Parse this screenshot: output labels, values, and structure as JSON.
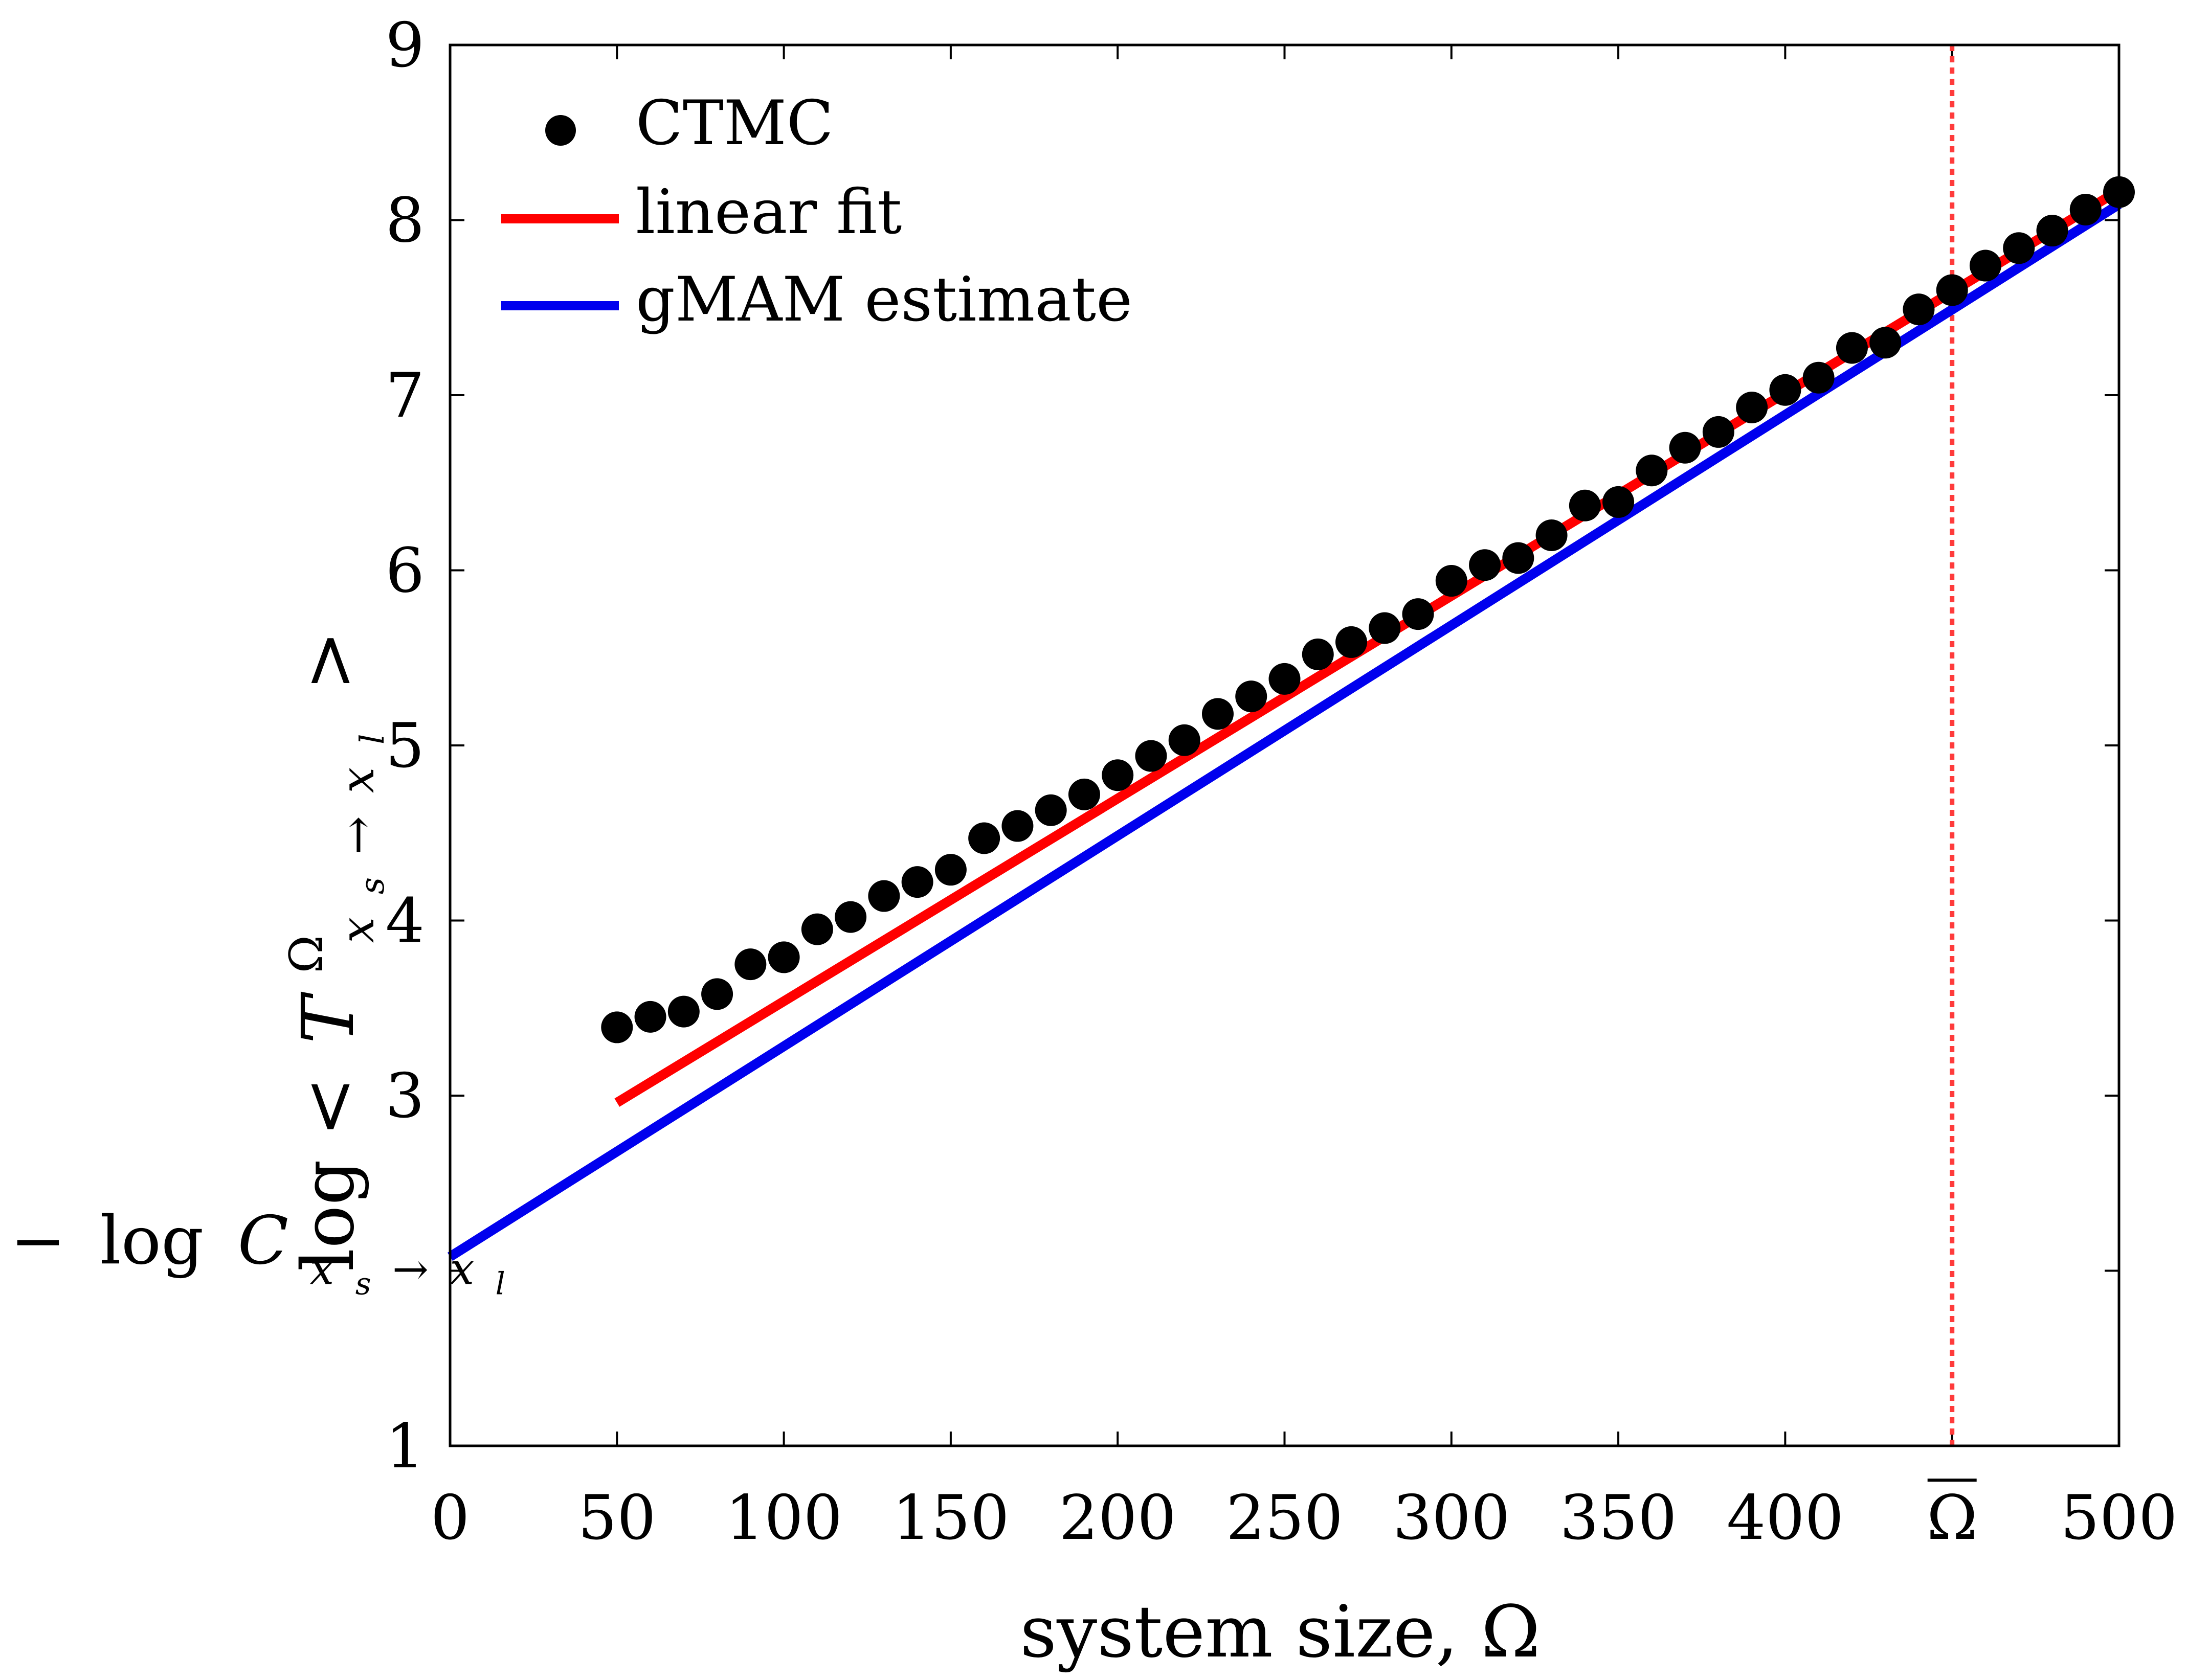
{
  "chart_data": {
    "type": "scatter",
    "xlabel": "system size, Ω",
    "ylabel": {
      "prefix": "log <",
      "symbol": "T",
      "superscript": "Ω",
      "subscript": "x",
      "subscript_index_s": "s",
      "arrow": "→",
      "subscript_target": "x",
      "subscript_index_l": "l",
      "suffix": ">"
    },
    "xlim": [
      0,
      500
    ],
    "ylim": [
      1,
      9
    ],
    "x_ticks": [
      0,
      50,
      100,
      150,
      200,
      250,
      300,
      350,
      400,
      450,
      500
    ],
    "x_tick_labels": [
      "0",
      "50",
      "100",
      "150",
      "200",
      "250",
      "300",
      "350",
      "400",
      "Ω",
      "500"
    ],
    "y_ticks": [
      1,
      2,
      3,
      4,
      5,
      6,
      7,
      8,
      9
    ],
    "y_tick_labels": [
      "1",
      "",
      "3",
      "4",
      "5",
      "6",
      "7",
      "8",
      "9"
    ],
    "intercept_label": {
      "value": 2.1,
      "minus": "−",
      "log": "log",
      "symbol": "C",
      "subscript": "x",
      "subscript_index_s": "s",
      "arrow": "→",
      "subscript_target": "x",
      "subscript_index_l": "l"
    },
    "vertical_line": {
      "x": 450,
      "style": "dotted",
      "color": "#ff3b3b"
    },
    "legend": [
      {
        "label": "CTMC",
        "marker": "dot",
        "color": "#000000"
      },
      {
        "label": "linear fit",
        "marker": "line",
        "color": "#ff0000"
      },
      {
        "label": "gMAM estimate",
        "marker": "line",
        "color": "#0000ee"
      }
    ],
    "series": [
      {
        "name": "CTMC",
        "kind": "scatter",
        "color": "#000000",
        "x": [
          50,
          60,
          70,
          80,
          90,
          100,
          110,
          120,
          130,
          140,
          150,
          160,
          170,
          180,
          190,
          200,
          210,
          220,
          230,
          240,
          250,
          260,
          270,
          280,
          290,
          300,
          310,
          320,
          330,
          340,
          350,
          360,
          370,
          380,
          390,
          400,
          410,
          420,
          430,
          440,
          450,
          460,
          470,
          480,
          490,
          500
        ],
        "y": [
          3.39,
          3.45,
          3.48,
          3.58,
          3.75,
          3.79,
          3.95,
          4.02,
          4.14,
          4.22,
          4.29,
          4.47,
          4.54,
          4.63,
          4.72,
          4.83,
          4.94,
          5.03,
          5.18,
          5.28,
          5.38,
          5.52,
          5.59,
          5.67,
          5.75,
          5.94,
          6.03,
          6.07,
          6.2,
          6.37,
          6.39,
          6.57,
          6.7,
          6.79,
          6.93,
          7.03,
          7.1,
          7.27,
          7.3,
          7.49,
          7.6,
          7.74,
          7.84,
          7.94,
          8.06,
          8.16
        ]
      },
      {
        "name": "linear fit",
        "kind": "line",
        "color": "#ff0000",
        "x": [
          50,
          500
        ],
        "y": [
          2.96,
          8.17
        ]
      },
      {
        "name": "gMAM estimate",
        "kind": "line",
        "color": "#0000ee",
        "x": [
          0,
          500
        ],
        "y": [
          2.08,
          8.09
        ]
      }
    ]
  }
}
